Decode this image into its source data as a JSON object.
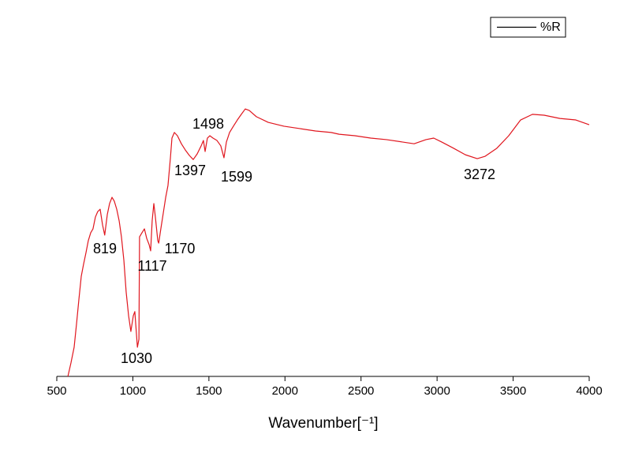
{
  "chart_data": {
    "type": "line",
    "x_label": "Wavenumber[⁻¹]",
    "xlim": [
      500,
      4000
    ],
    "xticks": [
      500,
      1000,
      1500,
      2000,
      2500,
      3000,
      3500,
      4000
    ],
    "ylim": [
      0,
      100
    ],
    "legend": "top-right",
    "series": [
      {
        "name": "%R",
        "color": "#e0161e",
        "x": [
          573,
          593,
          614,
          630,
          645,
          661,
          676,
          692,
          707,
          723,
          738,
          754,
          769,
          785,
          801,
          815,
          832,
          847,
          863,
          878,
          894,
          910,
          925,
          941,
          956,
          972,
          987,
          1003,
          1013,
          1030,
          1040,
          1044,
          1060,
          1076,
          1091,
          1107,
          1117,
          1127,
          1138,
          1148,
          1164,
          1170,
          1184,
          1200,
          1216,
          1231,
          1247,
          1257,
          1273,
          1293,
          1319,
          1345,
          1371,
          1397,
          1423,
          1449,
          1464,
          1475,
          1490,
          1506,
          1527,
          1553,
          1578,
          1599,
          1615,
          1636,
          1661,
          1687,
          1713,
          1739,
          1765,
          1812,
          1890,
          1993,
          2097,
          2201,
          2304,
          2356,
          2460,
          2564,
          2667,
          2771,
          2849,
          2927,
          2978,
          3030,
          3108,
          3186,
          3264,
          3316,
          3393,
          3471,
          3549,
          3627,
          3704,
          3808,
          3912,
          4000
        ],
        "values": [
          0,
          4.5,
          9.8,
          17.8,
          25.7,
          33.7,
          37.7,
          41.6,
          45.6,
          48.3,
          49.6,
          53.6,
          55.4,
          56.2,
          50.9,
          47.5,
          54.4,
          58.1,
          60.2,
          58.9,
          56.2,
          52.3,
          46.9,
          39.0,
          28.4,
          20.4,
          15.1,
          20.4,
          21.8,
          9.8,
          12.5,
          46.9,
          48.3,
          49.6,
          46.4,
          44.3,
          42.2,
          52.3,
          58.1,
          53.6,
          45.6,
          44.8,
          49.6,
          54.9,
          60.2,
          64.2,
          73.5,
          80.1,
          82.0,
          80.9,
          78.2,
          76.1,
          74.3,
          72.9,
          74.8,
          77.5,
          79.3,
          75.6,
          80.1,
          80.9,
          80.1,
          79.3,
          77.5,
          73.5,
          78.8,
          82.0,
          84.1,
          86.2,
          88.1,
          89.9,
          89.4,
          87.3,
          85.4,
          84.1,
          83.3,
          82.5,
          82.0,
          81.4,
          80.9,
          80.1,
          79.6,
          78.8,
          78.2,
          79.6,
          80.1,
          78.8,
          76.7,
          74.5,
          73.2,
          74.0,
          76.7,
          80.9,
          86.2,
          88.1,
          87.8,
          86.7,
          86.2,
          84.6
        ]
      }
    ],
    "annotations": [
      819,
      1030,
      1117,
      1170,
      1397,
      1498,
      1599,
      3272
    ]
  }
}
